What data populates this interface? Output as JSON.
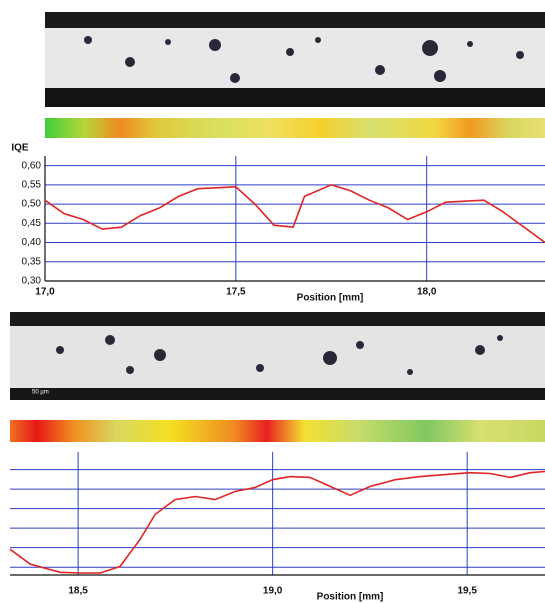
{
  "chart_data": [
    {
      "type": "line",
      "y_label": "IQE",
      "x_label": "Position [mm]",
      "color": "#e02424",
      "grid_color": "#2f3fc8",
      "x": [
        17.0,
        17.05,
        17.1,
        17.15,
        17.2,
        17.25,
        17.3,
        17.35,
        17.4,
        17.5,
        17.55,
        17.6,
        17.65,
        17.68,
        17.75,
        17.8,
        17.85,
        17.9,
        17.95,
        18.0,
        18.05,
        18.15,
        18.2,
        18.31
      ],
      "values": [
        0.51,
        0.475,
        0.46,
        0.435,
        0.44,
        0.47,
        0.49,
        0.52,
        0.54,
        0.545,
        0.5,
        0.445,
        0.44,
        0.52,
        0.55,
        0.535,
        0.51,
        0.49,
        0.46,
        0.48,
        0.505,
        0.51,
        0.48,
        0.4
      ],
      "xlim": [
        17.0,
        18.31
      ],
      "ylim": [
        0.3,
        0.625
      ],
      "xticks": [
        {
          "value": 17.0,
          "label": "17,0"
        },
        {
          "value": 17.5,
          "label": "17,5"
        },
        {
          "value": 18.0,
          "label": "18,0"
        }
      ],
      "yticks": [
        {
          "value": 0.3,
          "label": "0,30"
        },
        {
          "value": 0.35,
          "label": "0,35"
        },
        {
          "value": 0.4,
          "label": "0,40"
        },
        {
          "value": 0.45,
          "label": "0,45"
        },
        {
          "value": 0.5,
          "label": "0,50"
        },
        {
          "value": 0.55,
          "label": "0,55"
        },
        {
          "value": 0.6,
          "label": "0,60"
        }
      ],
      "ytick_labels": true,
      "grid": true
    },
    {
      "type": "line",
      "x_label": "Position [mm]",
      "annotation": "50 µm",
      "color": "#e02424",
      "grid_color": "#2f3fc8",
      "x": [
        18.325,
        18.377,
        18.454,
        18.505,
        18.557,
        18.608,
        18.659,
        18.698,
        18.749,
        18.801,
        18.852,
        18.904,
        18.955,
        19.0,
        19.045,
        19.096,
        19.148,
        19.199,
        19.251,
        19.315,
        19.379,
        19.443,
        19.507,
        19.559,
        19.611,
        19.662,
        19.7
      ],
      "values": [
        0.396,
        0.358,
        0.337,
        0.335,
        0.335,
        0.352,
        0.421,
        0.485,
        0.523,
        0.531,
        0.523,
        0.544,
        0.554,
        0.574,
        0.582,
        0.58,
        0.557,
        0.534,
        0.557,
        0.574,
        0.582,
        0.587,
        0.592,
        0.59,
        0.58,
        0.592,
        0.595
      ],
      "xlim": [
        18.325,
        19.7
      ],
      "ylim": [
        0.33,
        0.645
      ],
      "xticks": [
        {
          "value": 18.5,
          "label": "18,5"
        },
        {
          "value": 19.0,
          "label": "19,0"
        },
        {
          "value": 19.5,
          "label": "19,5"
        }
      ],
      "yticks": [
        0.35,
        0.4,
        0.45,
        0.5,
        0.55,
        0.6
      ],
      "ytick_labels": false,
      "grid": true
    }
  ]
}
